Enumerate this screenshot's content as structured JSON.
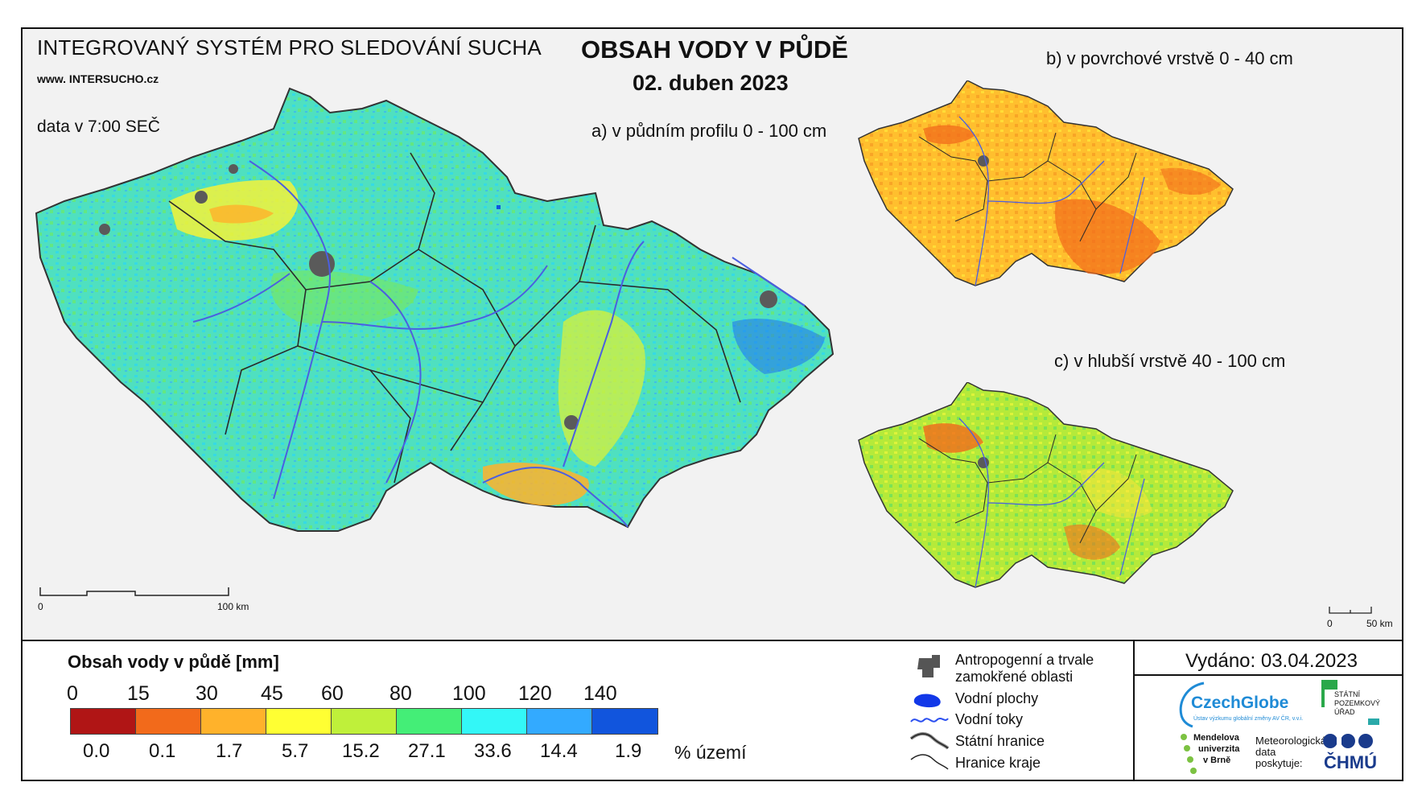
{
  "header": {
    "system_title": "INTEGROVANÝ SYSTÉM PRO SLEDOVÁNÍ SUCHA",
    "website": "www. INTERSUCHO.cz",
    "data_time": "data v 7:00 SEČ",
    "main_title": "OBSAH VODY V PŮDĚ",
    "date": "02. duben 2023"
  },
  "maps": {
    "a_label": "a) v půdním profilu 0 - 100 cm",
    "b_label": "b) v povrchové vrstvě 0 - 40 cm",
    "c_label": "c) v hlubší vrstvě 40 - 100 cm",
    "scale_main": {
      "start": "0",
      "end": "100 km"
    },
    "scale_small": {
      "start": "0",
      "end": "50 km"
    }
  },
  "legend": {
    "title": "Obsah vody v půdě  [mm]",
    "ticks": [
      "0",
      "15",
      "30",
      "45",
      "60",
      "80",
      "100",
      "120",
      "140"
    ],
    "classes": [
      {
        "color": "#b01515",
        "percent": "0.0"
      },
      {
        "color": "#f26a1b",
        "percent": "0.1"
      },
      {
        "color": "#ffb22b",
        "percent": "1.7"
      },
      {
        "color": "#ffff33",
        "percent": "5.7"
      },
      {
        "color": "#bff03a",
        "percent": "15.2"
      },
      {
        "color": "#44ee77",
        "percent": "27.1"
      },
      {
        "color": "#33f7f7",
        "percent": "33.6"
      },
      {
        "color": "#33aaff",
        "percent": "14.4"
      },
      {
        "color": "#1155dd",
        "percent": "1.9"
      }
    ],
    "percent_unit": "% území"
  },
  "map_key": {
    "anthropogenic": "Antropogenní a trvale zamokřené oblasti",
    "water_bodies": "Vodní plochy",
    "water_streams": "Vodní toky",
    "state_border": "Státní hranice",
    "region_border": "Hranice kraje"
  },
  "footer": {
    "issued": "Vydáno: 03.04.2023",
    "czechglobe": "CzechGlobe",
    "czechglobe_sub": "Ústav výzkumu globální změny AV ČR, v.v.i.",
    "spu": [
      "STÁTNÍ",
      "POZEMKOVÝ",
      "ÚŘAD"
    ],
    "mendel": [
      "Mendelova",
      "univerzita",
      "v Brně"
    ],
    "met_data": [
      "Meteorologická",
      "data",
      "poskytuje:"
    ],
    "chmu": "ČHMÚ"
  },
  "colors": {
    "frame": "#111111",
    "border_state": "#333333",
    "river": "#4b5fe0",
    "urban": "#5a5a5a"
  }
}
